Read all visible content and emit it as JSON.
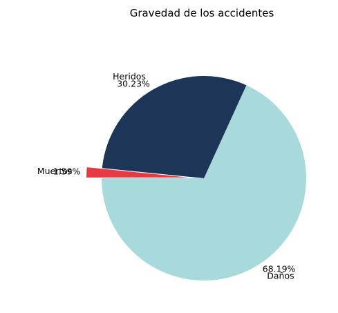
{
  "chart_data": {
    "type": "pie",
    "title": "Gravedad de los accidentes",
    "categories": [
      "Daños",
      "Heridos",
      "Muertos"
    ],
    "values": [
      68.19,
      30.23,
      1.59
    ],
    "value_labels": [
      "68.19%",
      "30.23%",
      "1.59%"
    ],
    "colors": [
      "#a8dadc",
      "#1d3557",
      "#e63946"
    ],
    "exploded": [
      false,
      false,
      true
    ],
    "legend": "none"
  }
}
